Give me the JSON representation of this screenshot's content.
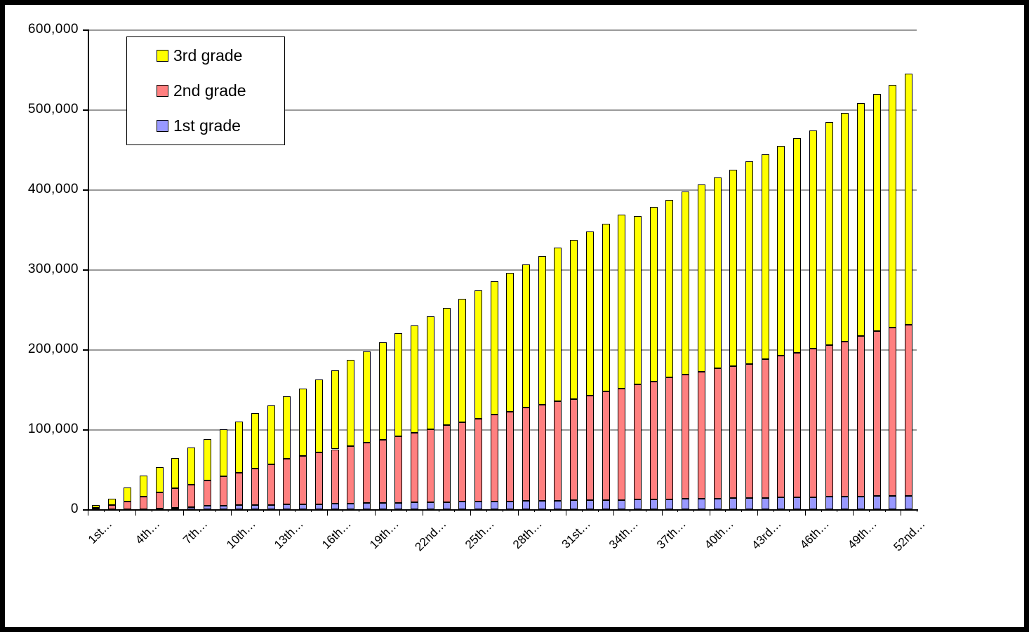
{
  "chart_data": {
    "type": "bar",
    "stacked": true,
    "title": "",
    "xlabel": "",
    "ylabel": "",
    "num_bars": 52,
    "ylim": [
      0,
      600000
    ],
    "y_tick_step": 100000,
    "grid": "horizontal-gray",
    "legend_position": "top-left-inside",
    "y_tick_labels": [
      "0",
      "100,000",
      "200,000",
      "300,000",
      "400,000",
      "500,000",
      "600,000"
    ],
    "x_tick_labels": [
      "1st…",
      "4th…",
      "7th…",
      "10th…",
      "13th…",
      "16th…",
      "19th…",
      "22nd…",
      "25th…",
      "28th…",
      "31st…",
      "34th…",
      "37th…",
      "40th…",
      "43rd…",
      "46th…",
      "49th…",
      "52nd…"
    ],
    "x_label_every": 3,
    "legend_items": [
      {
        "label": "3rd grade",
        "color": "#FFFF00"
      },
      {
        "label": "2nd grade",
        "color": "#FF8080"
      },
      {
        "label": "1st grade",
        "color": "#9999FF"
      }
    ],
    "series": [
      {
        "name": "1st grade",
        "color": "#9999FF",
        "values": [
          0,
          0,
          0,
          0,
          1000,
          2000,
          3000,
          4500,
          4800,
          5000,
          5300,
          5500,
          5800,
          6100,
          6400,
          6700,
          7000,
          7800,
          8000,
          8300,
          8500,
          8800,
          9000,
          9300,
          9500,
          9800,
          10000,
          10300,
          10500,
          10800,
          11000,
          11300,
          11500,
          11800,
          12000,
          12300,
          12600,
          12900,
          13200,
          13500,
          13800,
          14100,
          14400,
          14700,
          15000,
          15200,
          15500,
          15800,
          16000,
          16300,
          16500,
          16800
        ]
      },
      {
        "name": "2nd grade",
        "color": "#FF8080",
        "values": [
          2000,
          5000,
          10000,
          16000,
          20000,
          24000,
          28000,
          31500,
          36200,
          41000,
          45700,
          50500,
          57200,
          60900,
          64600,
          68300,
          72000,
          75200,
          79000,
          82700,
          87500,
          91200,
          96000,
          99700,
          103500,
          108200,
          112000,
          116700,
          120500,
          124200,
          127000,
          130700,
          135500,
          139200,
          144000,
          147700,
          152400,
          155100,
          158800,
          162500,
          165200,
          167900,
          173600,
          177300,
          181000,
          185800,
          189500,
          194200,
          201000,
          206700,
          210500,
          214200
        ]
      },
      {
        "name": "3rd grade",
        "color": "#FFFF00",
        "values": [
          3000,
          8000,
          17000,
          26000,
          32000,
          38000,
          46000,
          52000,
          59000,
          64000,
          69000,
          74000,
          78000,
          84000,
          91000,
          99000,
          108000,
          114000,
          122000,
          129000,
          134000,
          141000,
          147000,
          154000,
          161000,
          167000,
          174000,
          179000,
          186000,
          192000,
          199000,
          205000,
          210000,
          217000,
          211000,
          218000,
          222000,
          229000,
          234000,
          239000,
          246000,
          253000,
          256000,
          262000,
          268000,
          273000,
          279000,
          286000,
          291000,
          296000,
          304000,
          314000
        ]
      }
    ],
    "colors": {
      "grid": "#9a9a9a",
      "axis": "#000000",
      "background": "#ffffff",
      "frame": "#000000"
    }
  },
  "legend": {
    "item0": "3rd grade",
    "item1": "2nd grade",
    "item2": "1st grade"
  }
}
